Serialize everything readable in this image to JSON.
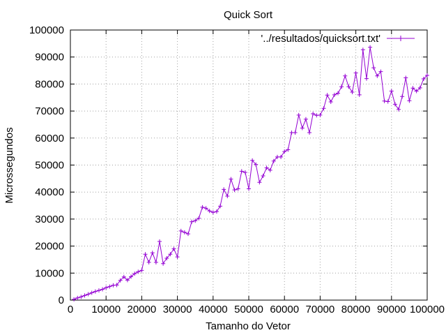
{
  "chart_data": {
    "type": "line",
    "title": "Quick Sort",
    "xlabel": "Tamanho do Vetor",
    "ylabel": "Microssegundos",
    "xlim": [
      0,
      100000
    ],
    "ylim": [
      0,
      100000
    ],
    "xticks": [
      0,
      10000,
      20000,
      30000,
      40000,
      50000,
      60000,
      70000,
      80000,
      90000,
      100000
    ],
    "yticks": [
      0,
      10000,
      20000,
      30000,
      40000,
      50000,
      60000,
      70000,
      80000,
      90000,
      100000
    ],
    "grid": true,
    "legend_position": "top-right",
    "series": [
      {
        "name": "'../resultados/quicksort.txt'",
        "color": "#9400d3",
        "marker": "plus",
        "x": [
          1000,
          2000,
          3000,
          4000,
          5000,
          6000,
          7000,
          8000,
          9000,
          10000,
          11000,
          12000,
          13000,
          14000,
          15000,
          16000,
          17000,
          18000,
          19000,
          20000,
          21000,
          22000,
          23000,
          24000,
          25000,
          26000,
          27000,
          28000,
          29000,
          30000,
          31000,
          32000,
          33000,
          34000,
          35000,
          36000,
          37000,
          38000,
          39000,
          40000,
          41000,
          42000,
          43000,
          44000,
          45000,
          46000,
          47000,
          48000,
          49000,
          50000,
          51000,
          52000,
          53000,
          54000,
          55000,
          56000,
          57000,
          58000,
          59000,
          60000,
          61000,
          62000,
          63000,
          64000,
          65000,
          66000,
          67000,
          68000,
          69000,
          70000,
          71000,
          72000,
          73000,
          74000,
          75000,
          76000,
          77000,
          78000,
          79000,
          80000,
          81000,
          82000,
          83000,
          84000,
          85000,
          86000,
          87000,
          88000,
          89000,
          90000,
          91000,
          92000,
          93000,
          94000,
          95000,
          96000,
          97000,
          98000,
          99000,
          100000
        ],
        "y": [
          300,
          800,
          1200,
          1700,
          2200,
          2700,
          3200,
          3600,
          4000,
          4600,
          5000,
          5500,
          5600,
          7300,
          8600,
          7400,
          8700,
          9800,
          10500,
          11000,
          17000,
          14000,
          17500,
          14000,
          21700,
          13500,
          15500,
          17000,
          19000,
          16000,
          25600,
          25100,
          24500,
          29000,
          29400,
          30300,
          34400,
          34000,
          33000,
          32500,
          32800,
          34800,
          41000,
          38500,
          44800,
          40800,
          41200,
          47700,
          47300,
          41200,
          51700,
          50200,
          43600,
          46000,
          49000,
          48100,
          51500,
          53000,
          53000,
          55000,
          55700,
          62000,
          62000,
          68500,
          63700,
          67000,
          62000,
          69000,
          68400,
          68500,
          71000,
          75900,
          73400,
          76000,
          76600,
          79000,
          83000,
          79000,
          77000,
          84100,
          76000,
          92700,
          82000,
          93600,
          86000,
          83000,
          84600,
          73700,
          73500,
          77400,
          72500,
          70600,
          75400,
          82300,
          73800,
          78500,
          77400,
          78600,
          81900,
          83200
        ]
      }
    ]
  }
}
